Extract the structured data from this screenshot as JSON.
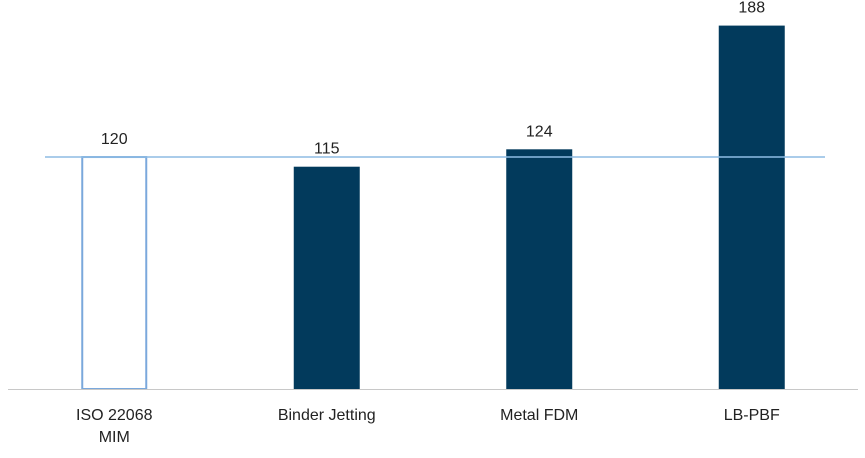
{
  "chart_data": {
    "type": "bar",
    "title": "",
    "xlabel": "",
    "ylabel": "",
    "categories": [
      [
        "ISO 22068",
        "MIM"
      ],
      [
        "Binder Jetting"
      ],
      [
        "Metal FDM"
      ],
      [
        "LB-PBF"
      ]
    ],
    "values": [
      120,
      115,
      124,
      188
    ],
    "bar_styles": [
      "outline",
      "filled",
      "filled",
      "filled"
    ],
    "reference_line": {
      "value": 120
    },
    "ylim": [
      0,
      200
    ],
    "grid": false,
    "legend": "none",
    "colors": {
      "bar_fill": "#023a5c",
      "outline": "#7aa8dc",
      "reference_line": "#8ebce3",
      "axis": "#c8c8c8",
      "text": "#222222"
    }
  }
}
